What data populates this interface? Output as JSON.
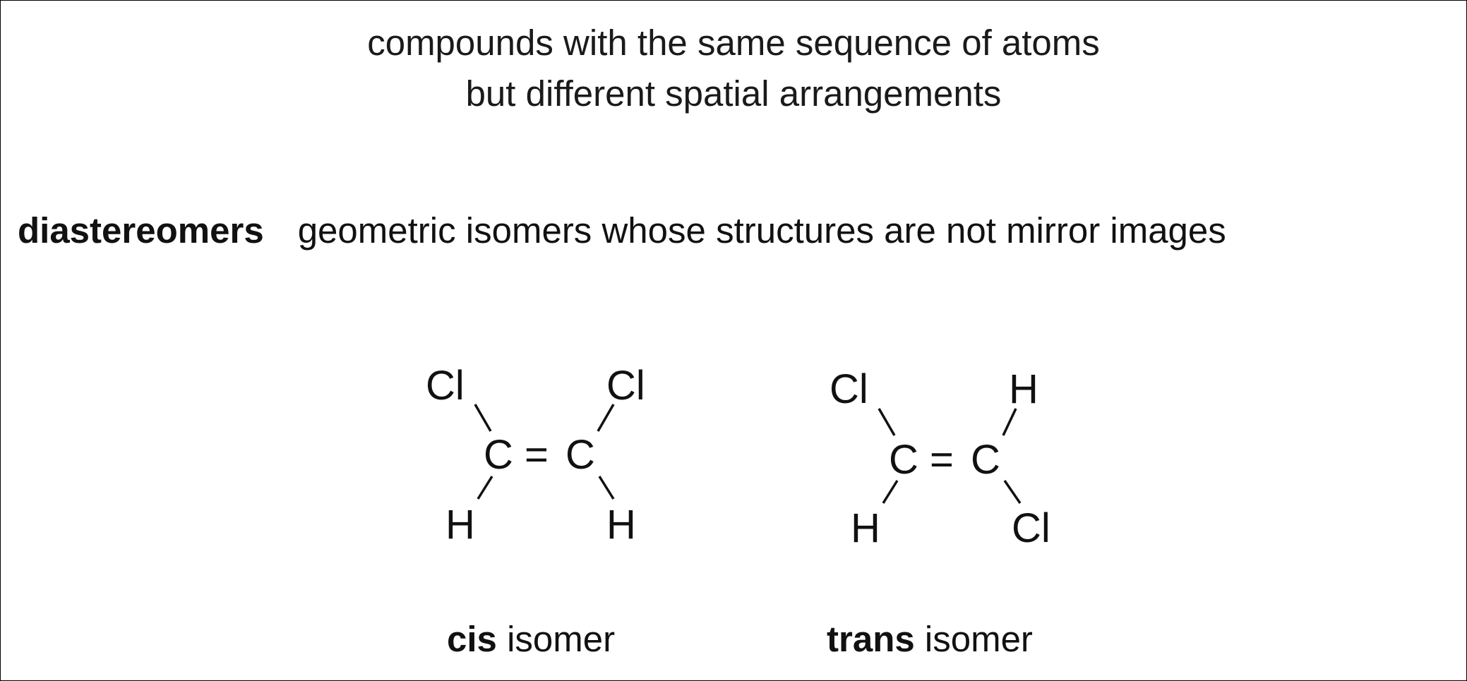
{
  "heading": {
    "line1": "compounds with the same sequence of atoms",
    "line2": "but different spatial arrangements"
  },
  "definition": {
    "term": "diastereomers",
    "text": "geometric isomers whose structures are not mirror images"
  },
  "molecules": [
    {
      "id": "cis",
      "atoms": {
        "top_left": "Cl",
        "top_right": "Cl",
        "carbon_left": "C",
        "double_bond": "=",
        "carbon_right": "C",
        "bottom_left": "H",
        "bottom_right": "H"
      },
      "caption_bold": "cis",
      "caption_rest": " isomer"
    },
    {
      "id": "trans",
      "atoms": {
        "top_left": "Cl",
        "top_right": "H",
        "carbon_left": "C",
        "double_bond": "=",
        "carbon_right": "C",
        "bottom_left": "H",
        "bottom_right": "Cl"
      },
      "caption_bold": "trans",
      "caption_rest": " isomer"
    }
  ]
}
